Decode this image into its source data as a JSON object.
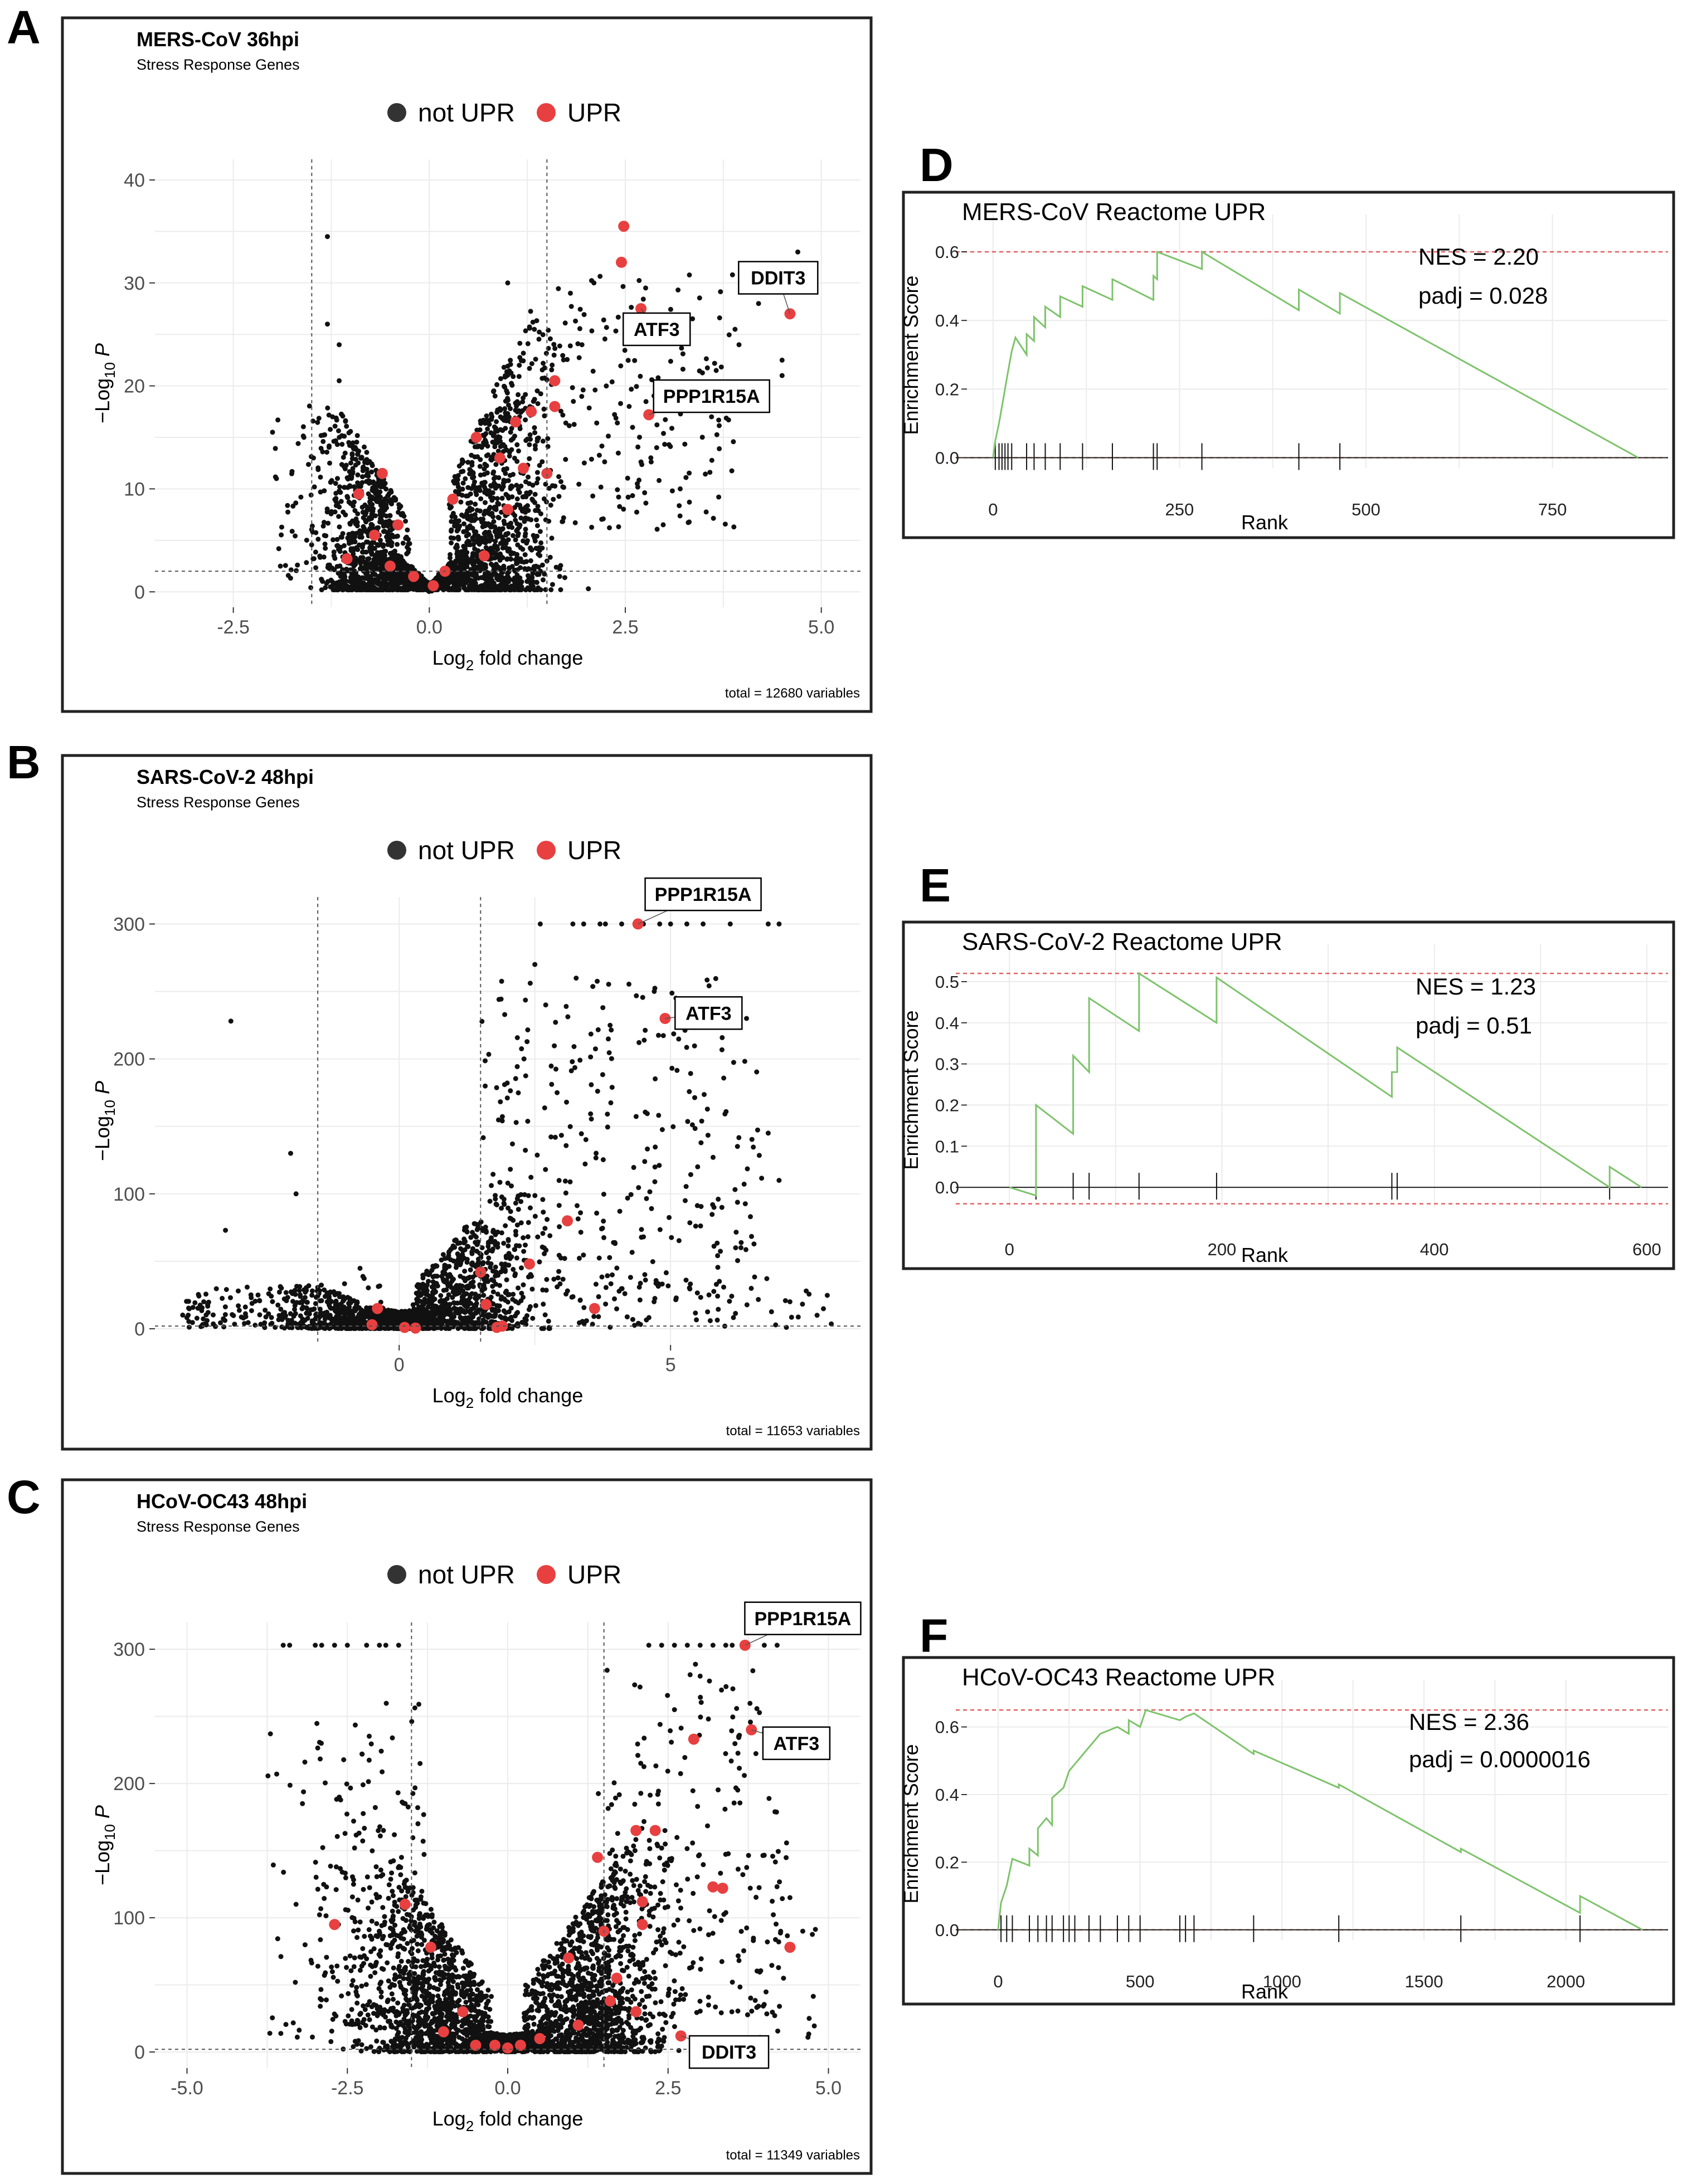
{
  "chart_data": [
    {
      "panel": "A",
      "type": "scatter",
      "title": "MERS-CoV 36hpi",
      "subtitle": "Stress Response Genes",
      "legend": [
        {
          "label": "not UPR",
          "color": "#333333"
        },
        {
          "label": "UPR",
          "color": "#e84040"
        }
      ],
      "xlabel_main": "Log",
      "xlabel_sub": "2",
      "xlabel_rest": " fold change",
      "ylabel_pre": "−Log",
      "ylabel_sub": "10",
      "ylabel_italic": "P",
      "xlim": [
        -3.5,
        5.5
      ],
      "ylim": [
        -1.5,
        42
      ],
      "xticks": [
        -2.5,
        0.0,
        2.5,
        5.0
      ],
      "xtick_labels": [
        "-2.5",
        "0.0",
        "2.5",
        "5.0"
      ],
      "yticks": [
        0,
        10,
        20,
        30,
        40
      ],
      "ytick_labels": [
        "0",
        "10",
        "20",
        "30",
        "40"
      ],
      "fc_cutoffs": [
        -1.5,
        1.5
      ],
      "p_cutoff": 2,
      "total_label": "total = 12680 variables",
      "upr_points": [
        [
          2.48,
          35.5
        ],
        [
          2.45,
          32
        ],
        [
          2.7,
          27.5
        ],
        [
          4.6,
          27
        ],
        [
          2.8,
          17.2
        ],
        [
          1.6,
          20.5
        ],
        [
          1.6,
          18
        ],
        [
          1.3,
          17.5
        ],
        [
          1.1,
          16.5
        ],
        [
          0.6,
          15
        ],
        [
          0.9,
          13
        ],
        [
          1.2,
          12
        ],
        [
          1.5,
          11.5
        ],
        [
          0.3,
          9
        ],
        [
          1.0,
          8
        ],
        [
          -0.6,
          11.5
        ],
        [
          -0.9,
          9.5
        ],
        [
          -0.4,
          6.5
        ],
        [
          -0.7,
          5.5
        ],
        [
          -1.05,
          3.2
        ],
        [
          -0.5,
          2.5
        ],
        [
          0.7,
          3.5
        ],
        [
          0.2,
          2
        ],
        [
          -0.2,
          1.5
        ],
        [
          0.05,
          0.6
        ]
      ],
      "labeled_genes": [
        {
          "gene": "DDIT3",
          "x": 4.6,
          "y": 27,
          "lx": 4.45,
          "ly": 30.5
        },
        {
          "gene": "ATF3",
          "x": 2.7,
          "y": 27.5,
          "lx": 2.9,
          "ly": 25.5
        },
        {
          "gene": "PPP1R15A",
          "x": 2.8,
          "y": 17.2,
          "lx": 3.6,
          "ly": 19
        }
      ]
    },
    {
      "panel": "B",
      "type": "scatter",
      "title": "SARS-CoV-2 48hpi",
      "subtitle": "Stress Response Genes",
      "legend": [
        {
          "label": "not UPR",
          "color": "#333333"
        },
        {
          "label": "UPR",
          "color": "#e84040"
        }
      ],
      "xlabel_main": "Log",
      "xlabel_sub": "2",
      "xlabel_rest": " fold change",
      "ylabel_pre": "−Log",
      "ylabel_sub": "10",
      "ylabel_italic": "P",
      "xlim": [
        -4.5,
        8.5
      ],
      "ylim": [
        -12,
        320
      ],
      "xticks": [
        0,
        5
      ],
      "xtick_labels": [
        "0",
        "5"
      ],
      "yticks": [
        0,
        100,
        200,
        300
      ],
      "ytick_labels": [
        "0",
        "100",
        "200",
        "300"
      ],
      "fc_cutoffs": [
        -1.5,
        1.5
      ],
      "p_cutoff": 2,
      "total_label": "total = 11653 variables",
      "upr_points": [
        [
          4.4,
          300
        ],
        [
          4.9,
          230
        ],
        [
          3.1,
          80
        ],
        [
          2.4,
          48
        ],
        [
          3.6,
          15
        ],
        [
          1.6,
          18
        ],
        [
          1.9,
          2
        ],
        [
          1.8,
          1
        ],
        [
          -0.4,
          15
        ],
        [
          -0.5,
          3
        ],
        [
          0.1,
          1
        ],
        [
          0.3,
          0.5
        ],
        [
          1.5,
          42
        ]
      ],
      "labeled_genes": [
        {
          "gene": "PPP1R15A",
          "x": 4.4,
          "y": 300,
          "lx": 5.6,
          "ly": 322
        },
        {
          "gene": "ATF3",
          "x": 4.9,
          "y": 230,
          "lx": 5.7,
          "ly": 234
        }
      ]
    },
    {
      "panel": "C",
      "type": "scatter",
      "title": "HCoV-OC43 48hpi",
      "subtitle": "Stress Response Genes",
      "legend": [
        {
          "label": "not UPR",
          "color": "#333333"
        },
        {
          "label": "UPR",
          "color": "#e84040"
        }
      ],
      "xlabel_main": "Log",
      "xlabel_sub": "2",
      "xlabel_rest": " fold change",
      "ylabel_pre": "−Log",
      "ylabel_sub": "10",
      "ylabel_italic": "P",
      "xlim": [
        -5.5,
        5.5
      ],
      "ylim": [
        -12,
        320
      ],
      "xticks": [
        -5.0,
        -2.5,
        0.0,
        2.5,
        5.0
      ],
      "xtick_labels": [
        "-5.0",
        "-2.5",
        "0.0",
        "2.5",
        "5.0"
      ],
      "yticks": [
        0,
        100,
        200,
        300
      ],
      "ytick_labels": [
        "0",
        "100",
        "200",
        "300"
      ],
      "fc_cutoffs": [
        -1.5,
        1.5
      ],
      "p_cutoff": 2,
      "total_label": "total = 11349 variables",
      "upr_points": [
        [
          3.7,
          303
        ],
        [
          3.8,
          240
        ],
        [
          2.9,
          233
        ],
        [
          2.3,
          165
        ],
        [
          2.0,
          165
        ],
        [
          1.4,
          145
        ],
        [
          3.2,
          123
        ],
        [
          3.35,
          122
        ],
        [
          2.1,
          112
        ],
        [
          4.4,
          78
        ],
        [
          2.1,
          95
        ],
        [
          1.5,
          90
        ],
        [
          0.95,
          70
        ],
        [
          1.7,
          55
        ],
        [
          1.6,
          38
        ],
        [
          2.0,
          30
        ],
        [
          0.5,
          10
        ],
        [
          0.2,
          5
        ],
        [
          -0.2,
          5
        ],
        [
          -1.6,
          110
        ],
        [
          -1.2,
          78
        ],
        [
          -2.7,
          95
        ],
        [
          -0.7,
          30
        ],
        [
          2.7,
          12
        ],
        [
          -1.0,
          15
        ],
        [
          0.0,
          3
        ],
        [
          -0.5,
          5
        ],
        [
          1.1,
          20
        ]
      ],
      "labeled_genes": [
        {
          "gene": "PPP1R15A",
          "x": 3.7,
          "y": 303,
          "lx": 4.6,
          "ly": 323
        },
        {
          "gene": "ATF3",
          "x": 3.8,
          "y": 240,
          "lx": 4.5,
          "ly": 230
        },
        {
          "gene": "DDIT3",
          "x": 2.7,
          "y": 12,
          "lx": 3.45,
          "ly": 0
        }
      ]
    },
    {
      "panel": "D",
      "type": "line",
      "title": "MERS-CoV Reactome UPR",
      "nes_label": "NES = 2.20",
      "padj_label": "padj = 0.028",
      "xlabel": "Rank",
      "ylabel": "Enrichment Score",
      "xlim": [
        -35,
        905
      ],
      "ylim": [
        -0.03,
        0.66
      ],
      "xticks": [
        0,
        250,
        500,
        750
      ],
      "xtick_labels": [
        "0",
        "250",
        "500",
        "750"
      ],
      "yticks": [
        0.0,
        0.2,
        0.4,
        0.6
      ],
      "ytick_labels": [
        "0.0",
        "0.2",
        "0.4",
        "0.6"
      ],
      "max_es": 0.6,
      "min_es": 0.0,
      "hits": [
        3,
        8,
        12,
        16,
        20,
        25,
        45,
        55,
        70,
        90,
        120,
        160,
        215,
        220,
        280,
        410,
        465
      ],
      "curve": [
        [
          0,
          0.0
        ],
        [
          3,
          0.05
        ],
        [
          8,
          0.1
        ],
        [
          12,
          0.15
        ],
        [
          16,
          0.2
        ],
        [
          20,
          0.25
        ],
        [
          25,
          0.31
        ],
        [
          30,
          0.35
        ],
        [
          45,
          0.3
        ],
        [
          45,
          0.36
        ],
        [
          55,
          0.34
        ],
        [
          55,
          0.41
        ],
        [
          70,
          0.38
        ],
        [
          70,
          0.44
        ],
        [
          90,
          0.41
        ],
        [
          90,
          0.47
        ],
        [
          120,
          0.44
        ],
        [
          120,
          0.5
        ],
        [
          160,
          0.46
        ],
        [
          160,
          0.52
        ],
        [
          215,
          0.46
        ],
        [
          215,
          0.53
        ],
        [
          220,
          0.52
        ],
        [
          220,
          0.6
        ],
        [
          280,
          0.55
        ],
        [
          280,
          0.6
        ],
        [
          410,
          0.43
        ],
        [
          410,
          0.49
        ],
        [
          465,
          0.42
        ],
        [
          465,
          0.48
        ],
        [
          865,
          0.0
        ]
      ]
    },
    {
      "panel": "E",
      "type": "line",
      "title": "SARS-CoV-2 Reactome UPR",
      "nes_label": "NES = 1.23",
      "padj_label": "padj = 0.51",
      "xlabel": "Rank",
      "ylabel": "Enrichment Score",
      "xlim": [
        -40,
        620
      ],
      "ylim": [
        -0.05,
        0.55
      ],
      "xticks": [
        0,
        200,
        400,
        600
      ],
      "xtick_labels": [
        "0",
        "200",
        "400",
        "600"
      ],
      "yticks": [
        0.0,
        0.1,
        0.2,
        0.3,
        0.4,
        0.5
      ],
      "ytick_labels": [
        "0.0",
        "0.1",
        "0.2",
        "0.3",
        "0.4",
        "0.5"
      ],
      "max_es": 0.52,
      "min_es": -0.04,
      "hits": [
        25,
        60,
        75,
        122,
        195,
        360,
        365,
        565
      ],
      "curve": [
        [
          0,
          0.0
        ],
        [
          25,
          -0.02
        ],
        [
          25,
          0.2
        ],
        [
          60,
          0.13
        ],
        [
          60,
          0.32
        ],
        [
          75,
          0.28
        ],
        [
          75,
          0.46
        ],
        [
          122,
          0.38
        ],
        [
          122,
          0.52
        ],
        [
          195,
          0.4
        ],
        [
          195,
          0.51
        ],
        [
          360,
          0.22
        ],
        [
          360,
          0.28
        ],
        [
          365,
          0.28
        ],
        [
          365,
          0.34
        ],
        [
          565,
          0.0
        ],
        [
          565,
          0.05
        ],
        [
          595,
          0.0
        ]
      ]
    },
    {
      "panel": "F",
      "type": "line",
      "title": "HCoV-OC43 Reactome UPR",
      "nes_label": "NES = 2.36",
      "padj_label": "padj = 0.0000016",
      "xlabel": "Rank",
      "ylabel": "Enrichment Score",
      "xlim": [
        -110,
        2360
      ],
      "ylim": [
        -0.03,
        0.69
      ],
      "xticks": [
        0,
        500,
        1000,
        1500,
        2000
      ],
      "xtick_labels": [
        "0",
        "500",
        "1000",
        "1500",
        "2000"
      ],
      "yticks": [
        0.0,
        0.2,
        0.4,
        0.6
      ],
      "ytick_labels": [
        "0.0",
        "0.2",
        "0.4",
        "0.6"
      ],
      "max_es": 0.65,
      "min_es": 0.0,
      "hits": [
        10,
        30,
        50,
        110,
        140,
        170,
        190,
        230,
        250,
        270,
        320,
        360,
        420,
        460,
        500,
        640,
        660,
        690,
        900,
        1200,
        1630,
        2050
      ],
      "curve": [
        [
          0,
          0.0
        ],
        [
          10,
          0.08
        ],
        [
          30,
          0.13
        ],
        [
          50,
          0.21
        ],
        [
          110,
          0.19
        ],
        [
          110,
          0.24
        ],
        [
          140,
          0.22
        ],
        [
          140,
          0.3
        ],
        [
          170,
          0.33
        ],
        [
          190,
          0.31
        ],
        [
          190,
          0.39
        ],
        [
          230,
          0.42
        ],
        [
          250,
          0.47
        ],
        [
          270,
          0.49
        ],
        [
          320,
          0.54
        ],
        [
          360,
          0.58
        ],
        [
          420,
          0.6
        ],
        [
          460,
          0.58
        ],
        [
          460,
          0.62
        ],
        [
          500,
          0.6
        ],
        [
          520,
          0.65
        ],
        [
          640,
          0.62
        ],
        [
          660,
          0.63
        ],
        [
          690,
          0.64
        ],
        [
          900,
          0.52
        ],
        [
          900,
          0.53
        ],
        [
          1200,
          0.42
        ],
        [
          1200,
          0.43
        ],
        [
          1630,
          0.23
        ],
        [
          1630,
          0.24
        ],
        [
          2050,
          0.05
        ],
        [
          2050,
          0.1
        ],
        [
          2270,
          0.0
        ]
      ]
    }
  ]
}
